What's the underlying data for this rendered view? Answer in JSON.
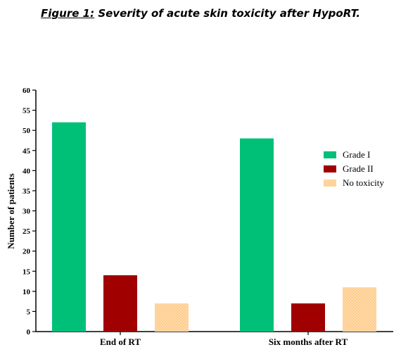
{
  "figure": {
    "label": "Figure 1:",
    "caption": " Severity of acute skin toxicity after HypoRT."
  },
  "chart_data": {
    "type": "bar",
    "categories": [
      "End of RT",
      "Six months after RT"
    ],
    "series": [
      {
        "name": "Grade I",
        "values": [
          52,
          48
        ],
        "color": "#00c078"
      },
      {
        "name": "Grade II",
        "values": [
          14,
          7
        ],
        "color": "#a00000"
      },
      {
        "name": "No toxicity",
        "values": [
          7,
          11
        ],
        "color": "#ffcc8c"
      }
    ],
    "ylabel": "Number of patients",
    "xlabel": "",
    "ylim": [
      0,
      60
    ],
    "yticks": [
      0,
      5,
      10,
      15,
      20,
      25,
      30,
      35,
      40,
      45,
      50,
      55,
      60
    ],
    "grid": false,
    "legend": "right"
  }
}
